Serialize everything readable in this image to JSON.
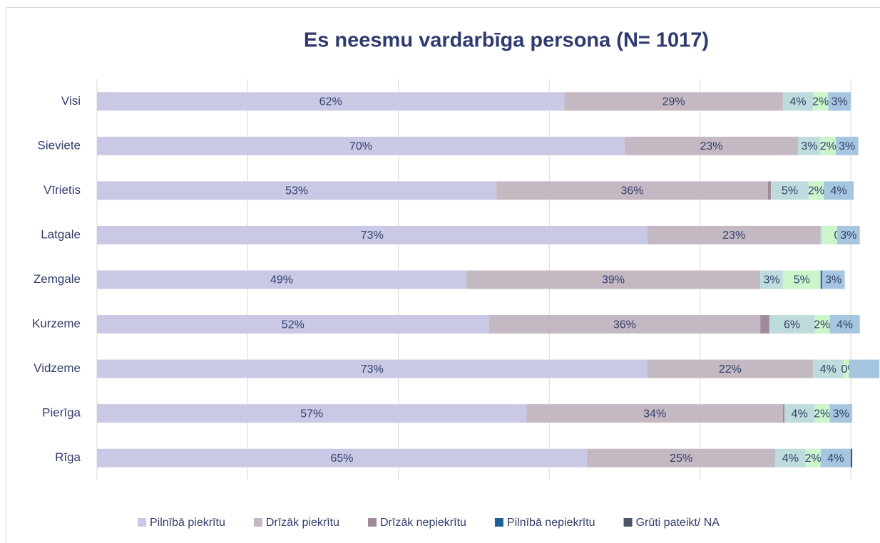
{
  "chart_data": {
    "type": "stacked-barh",
    "title": "Es neesmu vardarbīga persona (N= 1017)",
    "categories": [
      "Visi",
      "Sieviete",
      "Vīrietis",
      "Latgale",
      "Zemgale",
      "Kurzeme",
      "Vidzeme",
      "Pierīga",
      "Rīga"
    ],
    "xlim": [
      0,
      100
    ],
    "xticks": [
      0,
      20,
      40,
      60,
      80,
      100
    ],
    "grid": true,
    "legend": "bottom",
    "series": [
      {
        "name": "Pilnībā piekrītu",
        "color": "#c9c9e6",
        "values": [
          62,
          70,
          53,
          73,
          49,
          52,
          73,
          57,
          65
        ],
        "value_labels": [
          "62%",
          "70%",
          "53%",
          "73%",
          "49%",
          "52%",
          "73%",
          "57%",
          "65%"
        ]
      },
      {
        "name": "Drīzāk piekrītu",
        "color": "#c4b9c2",
        "values": [
          29,
          23,
          36,
          23,
          39,
          36,
          22,
          34,
          25
        ],
        "value_labels": [
          "29%",
          "23%",
          "36%",
          "23%",
          "39%",
          "36%",
          "22%",
          "34%",
          "25%"
        ]
      },
      {
        "name": "Drīzāk nepiekrītu",
        "color": "#9e8a9b",
        "values": [
          0,
          0,
          0.4,
          0,
          0,
          1.2,
          0,
          0.2,
          0
        ],
        "value_labels": [
          null,
          null,
          null,
          null,
          null,
          null,
          null,
          null,
          null
        ]
      },
      {
        "color": "#bfdcdc",
        "values": [
          4,
          3,
          5,
          0.2,
          3,
          6,
          4,
          4,
          4
        ],
        "value_labels": [
          "4%",
          "3%",
          "5%",
          null,
          "3%",
          "6%",
          "4%",
          "4%",
          "4%"
        ]
      },
      {
        "color": "#ccf5cc",
        "values": [
          2,
          2,
          2,
          2,
          5,
          2,
          0.8,
          2,
          2
        ],
        "value_labels": [
          "2%",
          "2%",
          "2%",
          null,
          "5%",
          "2%",
          null,
          "2%",
          "2%"
        ]
      },
      {
        "name": "Pilnībā nepiekrītu",
        "color": "#1f5f99",
        "values": [
          0,
          0,
          0,
          0,
          0.2,
          0,
          0,
          0,
          0
        ],
        "value_labels": [
          null,
          null,
          null,
          "0",
          null,
          null,
          "0%",
          null,
          null
        ]
      },
      {
        "color": "#a6c6e0",
        "values": [
          3,
          3,
          4,
          3,
          3,
          4,
          4,
          3,
          4
        ],
        "value_labels": [
          "3%",
          "3%",
          "4%",
          "3%",
          "3%",
          "4%",
          null,
          "3%",
          "4%"
        ]
      },
      {
        "name": "Grūti pateikt/ NA",
        "color": "#4a5568",
        "values": [
          0,
          0,
          0,
          0,
          0,
          0,
          0,
          0,
          0.2
        ],
        "value_labels": [
          null,
          null,
          null,
          null,
          null,
          null,
          null,
          null,
          null
        ]
      }
    ]
  }
}
